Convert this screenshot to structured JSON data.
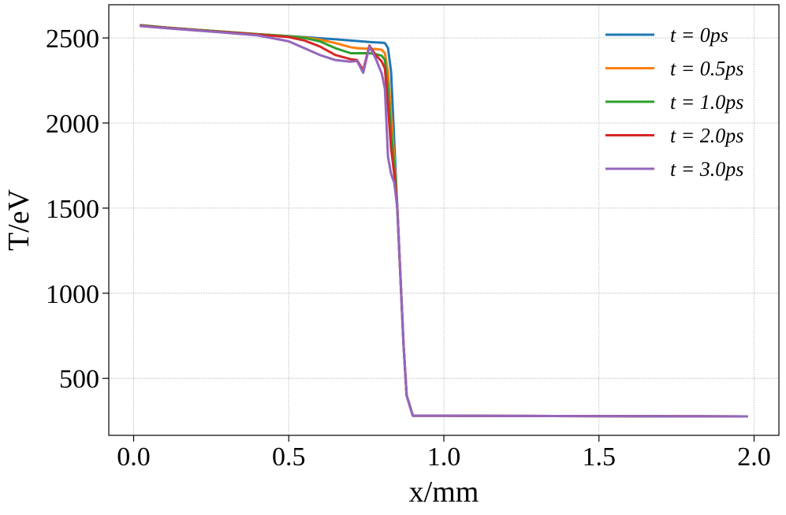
{
  "chart_data": {
    "type": "line",
    "xlabel": "x/mm",
    "ylabel": "T/eV",
    "xlim": [
      -0.08,
      2.08
    ],
    "ylim": [
      165,
      2695
    ],
    "xticks": [
      {
        "value": 0,
        "label": "0.0"
      },
      0.5,
      {
        "value": 1,
        "label": "1.0"
      },
      1.5,
      {
        "value": 2,
        "label": "2.0"
      }
    ],
    "yticks": [
      500,
      1000,
      1500,
      2000,
      2500
    ],
    "grid": true,
    "legend": "upper right",
    "x": [
      0.02,
      0.1,
      0.2,
      0.3,
      0.4,
      0.5,
      0.55,
      0.6,
      0.65,
      0.7,
      0.72,
      0.74,
      0.76,
      0.78,
      0.8,
      0.81,
      0.82,
      0.83,
      0.84,
      0.85,
      0.86,
      0.87,
      0.88,
      0.9,
      1.0,
      1.2,
      1.5,
      1.8,
      1.98
    ],
    "series": [
      {
        "name": "t = 0ps",
        "color": "#1f77b4",
        "values": [
          2575,
          2562,
          2548,
          2535,
          2522,
          2510,
          2505,
          2498,
          2492,
          2485,
          2482,
          2479,
          2476,
          2474,
          2472,
          2470,
          2440,
          2300,
          1900,
          1500,
          1100,
          700,
          400,
          280,
          280,
          279,
          278,
          277,
          276
        ]
      },
      {
        "name": "t = 0.5ps",
        "color": "#ff7f0e",
        "values": [
          2575,
          2562,
          2548,
          2535,
          2522,
          2510,
          2503,
          2490,
          2470,
          2445,
          2440,
          2438,
          2436,
          2435,
          2430,
          2410,
          2300,
          2050,
          1800,
          1500,
          1100,
          700,
          400,
          280,
          280,
          279,
          278,
          277,
          276
        ]
      },
      {
        "name": "t = 1.0ps",
        "color": "#2ca02c",
        "values": [
          2575,
          2562,
          2548,
          2535,
          2522,
          2510,
          2500,
          2480,
          2440,
          2410,
          2410,
          2410,
          2410,
          2405,
          2395,
          2370,
          2200,
          1950,
          1750,
          1500,
          1100,
          700,
          400,
          280,
          280,
          279,
          278,
          277,
          276
        ]
      },
      {
        "name": "t = 2.0ps",
        "color": "#d62728",
        "values": [
          2572,
          2560,
          2546,
          2533,
          2520,
          2505,
          2485,
          2450,
          2400,
          2375,
          2370,
          2310,
          2455,
          2400,
          2360,
          2320,
          2100,
          1850,
          1700,
          1500,
          1100,
          700,
          400,
          280,
          280,
          279,
          278,
          277,
          276
        ]
      },
      {
        "name": "t = 3.0ps",
        "color": "#9467bd",
        "values": [
          2570,
          2558,
          2544,
          2530,
          2515,
          2480,
          2440,
          2400,
          2370,
          2360,
          2365,
          2295,
          2450,
          2380,
          2290,
          2200,
          1800,
          1700,
          1650,
          1500,
          1100,
          700,
          400,
          280,
          280,
          279,
          278,
          277,
          276
        ]
      }
    ]
  }
}
